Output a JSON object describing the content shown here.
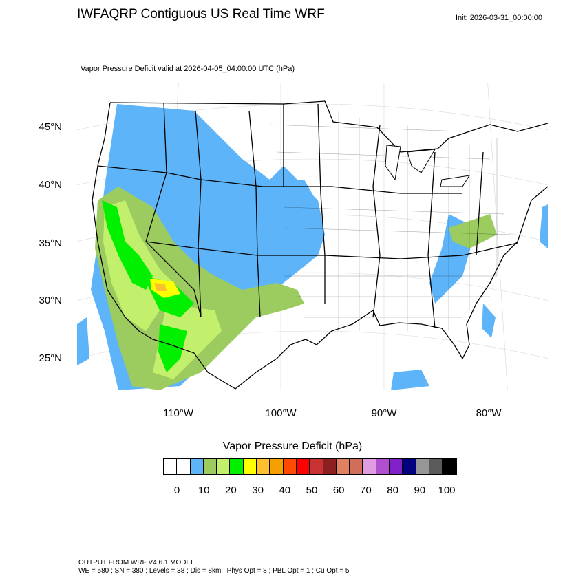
{
  "header": {
    "title": "IWFAQRP Contiguous US Real Time WRF",
    "init": "Init: 2026-03-31_00:00:00",
    "subtitle": "Vapor Pressure Deficit valid at 2026-04-05_04:00:00 UTC   (hPa)"
  },
  "map": {
    "lat_labels": [
      "45°N",
      "40°N",
      "35°N",
      "30°N",
      "25°N"
    ],
    "lon_labels": [
      "110°W",
      "100°W",
      "90°W",
      "80°W"
    ],
    "projection": "Lambert Conformal, contiguous US with state and county boundaries"
  },
  "legend": {
    "title": "Vapor Pressure Deficit  (hPa)",
    "ticks": [
      "0",
      "10",
      "20",
      "30",
      "40",
      "50",
      "60",
      "70",
      "80",
      "90",
      "100"
    ],
    "colors": [
      "#ffffff",
      "#ffffff",
      "#5eb4f8",
      "#9ccc60",
      "#c2f06c",
      "#00f000",
      "#ffff00",
      "#ffc030",
      "#f5a000",
      "#ff4a00",
      "#ff0000",
      "#c83232",
      "#8c2020",
      "#e08060",
      "#d06e5a",
      "#e09ce0",
      "#b050d0",
      "#8020c8",
      "#000080",
      "#969696",
      "#5a5a5a",
      "#000000"
    ]
  },
  "footer": {
    "line1": "OUTPUT FROM WRF V4.6.1 MODEL",
    "line2": "WE = 580 ; SN = 380 ; Levels = 38 ; Dis = 8km ; Phys Opt = 8 ; PBL Opt = 1 ; Cu Opt = 5"
  }
}
